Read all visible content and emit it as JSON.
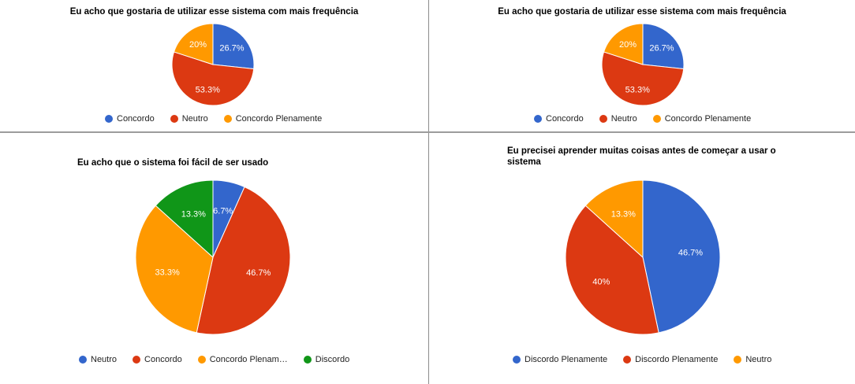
{
  "chart_data": [
    {
      "type": "pie",
      "title": "Eu acho que gostaria de utilizar esse sistema com mais frequência",
      "slices": [
        {
          "label": "Concordo",
          "value": 26.7,
          "text": "26.7%",
          "color": "#3366cc"
        },
        {
          "label": "Neutro",
          "value": 53.3,
          "text": "53.3%",
          "color": "#dc3912"
        },
        {
          "label": "Concordo Plenamente",
          "value": 20,
          "text": "20%",
          "color": "#ff9900"
        }
      ],
      "legend": "bottom"
    },
    {
      "type": "pie",
      "title": "Eu acho que gostaria de utilizar esse sistema com mais frequência",
      "slices": [
        {
          "label": "Concordo",
          "value": 26.7,
          "text": "26.7%",
          "color": "#3366cc"
        },
        {
          "label": "Neutro",
          "value": 53.3,
          "text": "53.3%",
          "color": "#dc3912"
        },
        {
          "label": "Concordo Plenamente",
          "value": 20,
          "text": "20%",
          "color": "#ff9900"
        }
      ],
      "legend": "bottom"
    },
    {
      "type": "pie",
      "title": "Eu acho que o sistema foi fácil de ser usado",
      "slices": [
        {
          "label": "Neutro",
          "value": 6.7,
          "text": "6.7%",
          "color": "#3366cc"
        },
        {
          "label": "Concordo",
          "value": 46.7,
          "text": "46.7%",
          "color": "#dc3912"
        },
        {
          "label": "Concordo Plenam…",
          "value": 33.3,
          "text": "33.3%",
          "color": "#ff9900"
        },
        {
          "label": "Discordo",
          "value": 13.3,
          "text": "13.3%",
          "color": "#109618"
        }
      ],
      "legend": "bottom"
    },
    {
      "type": "pie",
      "title": "Eu precisei aprender muitas coisas antes de começar a usar o sistema",
      "title_lines": [
        "Eu precisei aprender muitas coisas antes de começar a usar o",
        "sistema"
      ],
      "slices": [
        {
          "label": "Discordo Plenamente",
          "value": 46.7,
          "text": "46.7%",
          "color": "#3366cc"
        },
        {
          "label": "Discordo Plenamente",
          "value": 40,
          "text": "40%",
          "color": "#dc3912"
        },
        {
          "label": "Neutro",
          "value": 13.3,
          "text": "13.3%",
          "color": "#ff9900"
        }
      ],
      "legend": "bottom"
    }
  ]
}
